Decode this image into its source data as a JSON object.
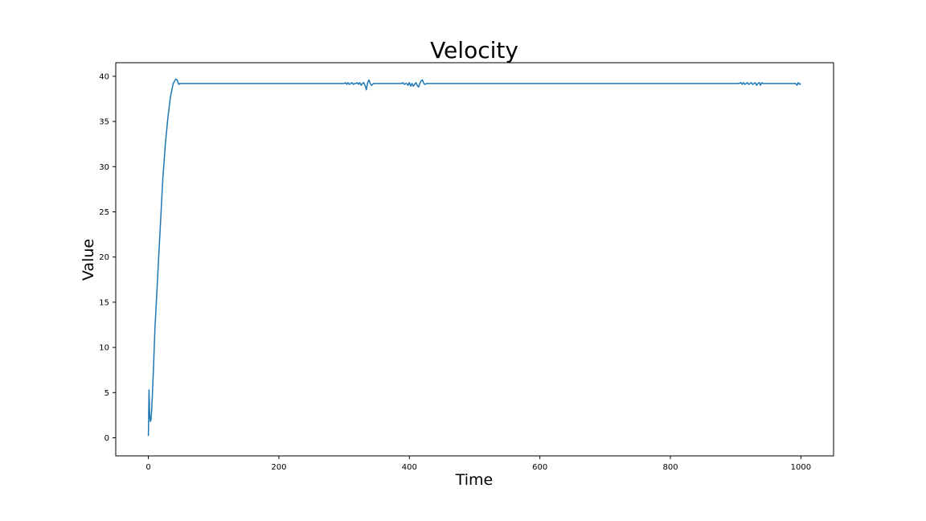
{
  "chart_data": {
    "type": "line",
    "title": "Velocity",
    "xlabel": "Time",
    "ylabel": "Value",
    "xlim": [
      -50,
      1050
    ],
    "ylim": [
      -2,
      41.5
    ],
    "xticks": [
      0,
      200,
      400,
      600,
      800,
      1000
    ],
    "yticks": [
      0,
      5,
      10,
      15,
      20,
      25,
      30,
      35,
      40
    ],
    "grid": false,
    "colors": {
      "series": "#1f77b4",
      "axes": "#000000"
    },
    "series": [
      {
        "x": [
          0,
          1,
          2,
          3,
          4,
          5,
          6,
          8,
          10,
          14,
          18,
          22,
          26,
          30,
          34,
          38,
          42,
          44,
          45,
          46,
          47,
          48,
          50,
          52,
          55,
          60,
          80,
          120,
          200,
          300,
          302,
          304,
          306,
          308,
          310,
          312,
          314,
          316,
          318,
          320,
          322,
          324,
          326,
          328,
          330,
          332,
          334,
          336,
          338,
          340,
          342,
          345,
          350,
          360,
          380,
          388,
          390,
          392,
          394,
          396,
          398,
          400,
          402,
          404,
          406,
          408,
          410,
          412,
          414,
          416,
          418,
          420,
          422,
          424,
          426,
          428,
          430,
          435,
          440,
          450,
          460,
          470,
          480,
          490,
          500,
          600,
          700,
          800,
          900,
          905,
          908,
          910,
          912,
          914,
          916,
          918,
          920,
          922,
          924,
          926,
          928,
          930,
          932,
          934,
          936,
          938,
          940,
          942,
          944,
          946,
          950,
          960,
          980,
          990,
          992,
          994,
          996,
          998,
          1000
        ],
        "values": [
          0.2,
          5.3,
          2.5,
          1.8,
          2.0,
          3.0,
          4.5,
          8.0,
          12.0,
          17.5,
          23.0,
          28.5,
          32.5,
          35.5,
          37.8,
          39.2,
          39.7,
          39.6,
          39.4,
          39.2,
          39.1,
          39.2,
          39.2,
          39.2,
          39.2,
          39.2,
          39.2,
          39.2,
          39.2,
          39.2,
          39.3,
          39.1,
          39.3,
          39.1,
          39.2,
          39.3,
          39.1,
          39.2,
          39.2,
          39.3,
          39.1,
          39.3,
          39.0,
          39.2,
          39.3,
          39.0,
          38.5,
          39.3,
          39.6,
          39.2,
          39.0,
          39.2,
          39.2,
          39.2,
          39.2,
          39.2,
          39.3,
          39.1,
          39.2,
          39.2,
          39.0,
          39.3,
          38.9,
          39.2,
          38.9,
          39.1,
          39.3,
          39.0,
          38.8,
          39.2,
          39.5,
          39.6,
          39.2,
          39.1,
          39.2,
          39.2,
          39.2,
          39.2,
          39.2,
          39.2,
          39.2,
          39.2,
          39.2,
          39.2,
          39.2,
          39.2,
          39.2,
          39.2,
          39.2,
          39.2,
          39.3,
          39.1,
          39.3,
          39.1,
          39.2,
          39.3,
          39.1,
          39.2,
          39.3,
          39.1,
          39.2,
          39.3,
          39.0,
          39.2,
          39.3,
          39.0,
          39.3,
          39.2,
          39.2,
          39.2,
          39.2,
          39.2,
          39.2,
          39.2,
          39.2,
          39.0,
          39.3,
          39.1,
          39.2
        ]
      }
    ]
  }
}
